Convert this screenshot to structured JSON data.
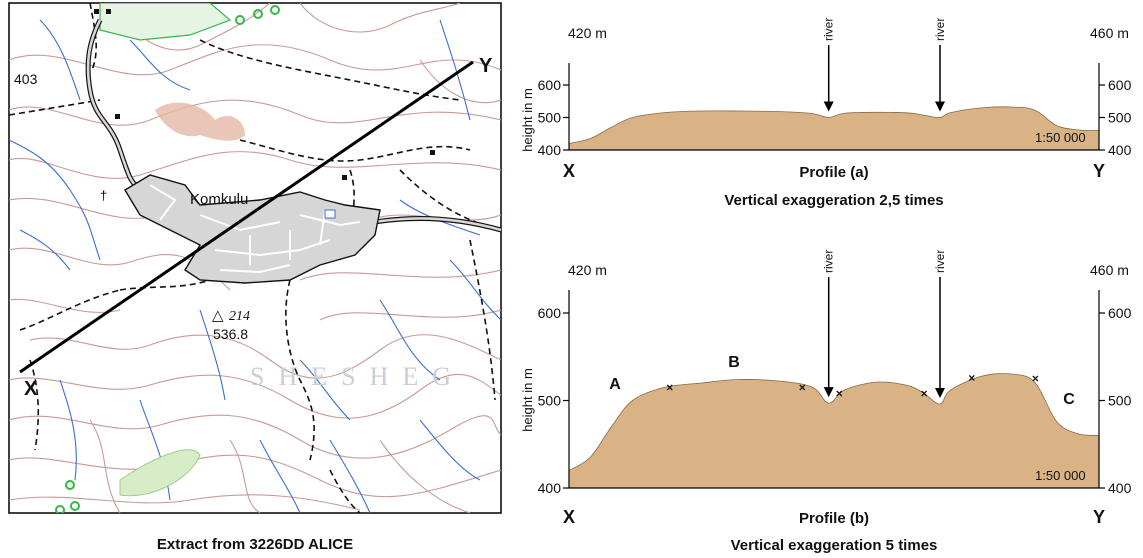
{
  "map": {
    "caption": "Extract from 3226DD ALICE",
    "place_name": "Komkulu",
    "spot_height_number": "214",
    "spot_height_value": "536.8",
    "contour_label": "403",
    "area_name": "SHESHEG",
    "end_x_label": "X",
    "end_y_label": "Y",
    "colors": {
      "contour": "#c89a98",
      "river": "#3a6fd0",
      "path": "#111111",
      "builtup": "#d6d6d6",
      "vegetation": "#37b74a",
      "erosion": "#d9a58a"
    }
  },
  "profiles": [
    {
      "id": "a",
      "title": "Profile (a)",
      "exaggeration_text": "Vertical exaggeration  2,5 times",
      "left_height_label": "420 m",
      "right_height_label": "460 m",
      "ylabel": "height in m",
      "yticks": [
        "600",
        "500",
        "400"
      ],
      "scale_label": "1:50 000",
      "x_label": "X",
      "y_label": "Y",
      "river_labels": [
        "river",
        "river"
      ],
      "point_labels": []
    },
    {
      "id": "b",
      "title": "Profile (b)",
      "exaggeration_text": "Vertical exaggeration  5 times",
      "left_height_label": "420 m",
      "right_height_label": "460 m",
      "ylabel": "height in m",
      "yticks": [
        "600",
        "500",
        "400"
      ],
      "scale_label": "1:50 000",
      "x_label": "X",
      "y_label": "Y",
      "river_labels": [
        "river",
        "river"
      ],
      "point_labels": [
        "A",
        "B",
        "C"
      ]
    }
  ],
  "chart_data": [
    {
      "type": "area",
      "title": "Profile (a)",
      "xlabel": "",
      "ylabel": "height in m",
      "ylim": [
        400,
        600
      ],
      "x": [
        0,
        0.04,
        0.08,
        0.12,
        0.18,
        0.25,
        0.32,
        0.4,
        0.46,
        0.49,
        0.52,
        0.58,
        0.64,
        0.67,
        0.7,
        0.72,
        0.78,
        0.84,
        0.88,
        0.92,
        0.96,
        1.0
      ],
      "y": [
        420,
        435,
        470,
        500,
        515,
        520,
        520,
        518,
        512,
        500,
        513,
        516,
        514,
        507,
        500,
        515,
        530,
        532,
        522,
        475,
        462,
        460
      ],
      "river_positions": [
        0.49,
        0.7
      ],
      "endpoints": {
        "X": "420 m",
        "Y": "460 m"
      }
    },
    {
      "type": "area",
      "title": "Profile (b)",
      "xlabel": "",
      "ylabel": "height in m",
      "ylim": [
        400,
        600
      ],
      "x": [
        0,
        0.04,
        0.08,
        0.12,
        0.18,
        0.25,
        0.32,
        0.4,
        0.46,
        0.49,
        0.52,
        0.58,
        0.64,
        0.67,
        0.7,
        0.72,
        0.78,
        0.84,
        0.88,
        0.92,
        0.96,
        1.0
      ],
      "y": [
        420,
        435,
        470,
        500,
        515,
        520,
        524,
        522,
        515,
        497,
        512,
        521,
        517,
        508,
        496,
        512,
        528,
        530,
        520,
        476,
        462,
        460
      ],
      "river_positions": [
        0.49,
        0.7
      ],
      "marked_points": [
        {
          "x": 0.19,
          "y": 515
        },
        {
          "x": 0.44,
          "y": 515
        },
        {
          "x": 0.51,
          "y": 508
        },
        {
          "x": 0.67,
          "y": 508
        },
        {
          "x": 0.76,
          "y": 526
        },
        {
          "x": 0.88,
          "y": 525
        }
      ],
      "endpoints": {
        "X": "420 m",
        "Y": "460 m"
      }
    }
  ]
}
